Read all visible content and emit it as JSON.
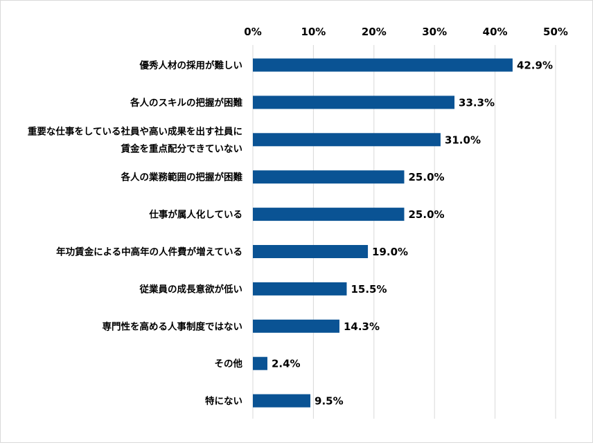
{
  "chart_data": {
    "type": "bar",
    "orientation": "horizontal",
    "categories": [
      [
        "優秀人材の採用が難しい"
      ],
      [
        "各人のスキルの把握が困難"
      ],
      [
        "重要な仕事をしている社員や高い成果を出す社員に",
        "賃金を重点配分できていない"
      ],
      [
        "各人の業務範囲の把握が困難"
      ],
      [
        "仕事が属人化している"
      ],
      [
        "年功賃金による中高年の人件費が増えている"
      ],
      [
        "従業員の成長意欲が低い"
      ],
      [
        "専門性を高める人事制度ではない"
      ],
      [
        "その他"
      ],
      [
        "特にない"
      ]
    ],
    "values": [
      42.9,
      33.3,
      31.0,
      25.0,
      25.0,
      19.0,
      15.5,
      14.3,
      2.4,
      9.5
    ],
    "value_labels": [
      "42.9%",
      "33.3%",
      "31.0%",
      "25.0%",
      "25.0%",
      "19.0%",
      "15.5%",
      "14.3%",
      "2.4%",
      "9.5%"
    ],
    "xlim": [
      0,
      50
    ],
    "ticks": [
      0,
      10,
      20,
      30,
      40,
      50
    ],
    "tick_labels": [
      "0%",
      "10%",
      "20%",
      "30%",
      "40%",
      "50%"
    ],
    "x_axis_position": "top",
    "grid": true,
    "legend": "none",
    "bar_color": "#0a5394",
    "grid_color": "#d9d9d9",
    "title": "",
    "xlabel": "",
    "ylabel": ""
  }
}
